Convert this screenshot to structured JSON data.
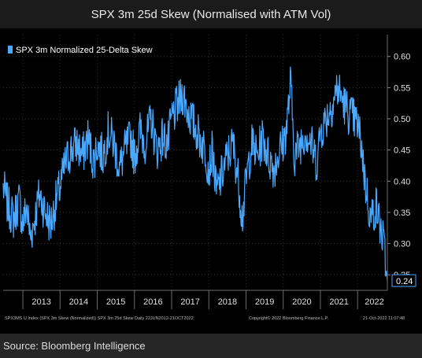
{
  "header": {
    "title": "SPX 3m 25d Skew (Normalised with ATM Vol)"
  },
  "footer": {
    "source": "Source: Bloomberg Intelligence"
  },
  "chart_data": {
    "type": "line",
    "legend": "SPX 3m Normalized 25-Delta Skew",
    "legend_position": "top-left",
    "series_color": "#4aa8ff",
    "x_labels": [
      "2013",
      "2014",
      "2015",
      "2016",
      "2017",
      "2018",
      "2019",
      "2020",
      "2021",
      "2022"
    ],
    "x_range": [
      "2012-06-22",
      "2022-10-21"
    ],
    "y_ticks": [
      "0.25",
      "0.30",
      "0.35",
      "0.40",
      "0.45",
      "0.50",
      "0.55",
      "0.60"
    ],
    "ylim": [
      0.225,
      0.635
    ],
    "last_value": "0.24",
    "grid": true,
    "series": [
      {
        "name": "SPX 3m Normalized 25-Delta Skew",
        "x": [
          2012.47,
          2012.6,
          2012.75,
          2012.9,
          2013.0,
          2013.1,
          2013.2,
          2013.32,
          2013.45,
          2013.6,
          2013.75,
          2013.9,
          2014.0,
          2014.15,
          2014.3,
          2014.45,
          2014.6,
          2014.75,
          2014.9,
          2015.0,
          2015.15,
          2015.3,
          2015.45,
          2015.6,
          2015.75,
          2015.9,
          2016.0,
          2016.15,
          2016.3,
          2016.45,
          2016.6,
          2016.75,
          2016.9,
          2017.0,
          2017.15,
          2017.3,
          2017.45,
          2017.6,
          2017.75,
          2017.9,
          2018.0,
          2018.1,
          2018.2,
          2018.35,
          2018.5,
          2018.65,
          2018.8,
          2018.9,
          2019.0,
          2019.15,
          2019.3,
          2019.45,
          2019.6,
          2019.75,
          2019.9,
          2020.0,
          2020.1,
          2020.2,
          2020.3,
          2020.45,
          2020.6,
          2020.75,
          2020.9,
          2021.0,
          2021.15,
          2021.3,
          2021.45,
          2021.6,
          2021.75,
          2021.9,
          2022.0,
          2022.1,
          2022.2,
          2022.35,
          2022.5,
          2022.6,
          2022.7,
          2022.8
        ],
        "y": [
          0.39,
          0.36,
          0.34,
          0.37,
          0.33,
          0.36,
          0.31,
          0.34,
          0.38,
          0.35,
          0.33,
          0.37,
          0.39,
          0.43,
          0.45,
          0.46,
          0.44,
          0.47,
          0.43,
          0.46,
          0.44,
          0.48,
          0.46,
          0.42,
          0.45,
          0.47,
          0.44,
          0.48,
          0.46,
          0.5,
          0.45,
          0.47,
          0.46,
          0.5,
          0.52,
          0.54,
          0.51,
          0.49,
          0.47,
          0.45,
          0.42,
          0.45,
          0.38,
          0.41,
          0.44,
          0.46,
          0.4,
          0.34,
          0.4,
          0.46,
          0.44,
          0.47,
          0.44,
          0.42,
          0.45,
          0.46,
          0.49,
          0.56,
          0.44,
          0.46,
          0.48,
          0.46,
          0.43,
          0.48,
          0.5,
          0.52,
          0.55,
          0.53,
          0.51,
          0.5,
          0.49,
          0.46,
          0.4,
          0.34,
          0.36,
          0.33,
          0.3,
          0.24
        ]
      }
    ]
  },
  "footnote": {
    "left": "SPX3MS U Index (SPX 3m Skew (Normalized)) SPX 3m 25d Skew  Daily 22JUN2012-21OCT2022",
    "center": "Copyright© 2022 Bloomberg Finance L.P.",
    "right": "21-Oct-2022 11:07:48"
  }
}
